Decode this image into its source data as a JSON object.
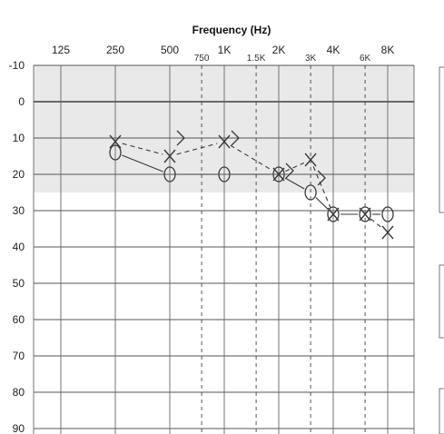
{
  "chart_data": {
    "type": "line",
    "title": "Frequency (Hz)",
    "x_scale": "log",
    "main_frequencies": [
      125,
      250,
      500,
      1000,
      2000,
      4000,
      8000
    ],
    "main_tick_labels": [
      "125",
      "250",
      "500",
      "1K",
      "2K",
      "4K",
      "8K"
    ],
    "inter_frequencies": [
      750,
      1500,
      3000,
      6000
    ],
    "inter_tick_labels": [
      "750",
      "1.5K",
      "3K",
      "6K"
    ],
    "y_ticks": [
      -10,
      0,
      10,
      20,
      30,
      40,
      50,
      60,
      70,
      80,
      90
    ],
    "y_tick_labels": [
      "-10",
      "0",
      "10",
      "20",
      "30",
      "40",
      "50",
      "60",
      "70",
      "80",
      "90"
    ],
    "ylim": [
      -10,
      90
    ],
    "y_inverted": true,
    "grid": true,
    "normal_zone": [
      -10,
      25
    ],
    "series": [
      {
        "symbol": "circle",
        "x": [
          250,
          500,
          1000,
          2000,
          3000,
          4000,
          6000,
          8000
        ],
        "y": [
          14,
          20,
          20,
          20,
          25,
          31,
          31,
          31
        ]
      },
      {
        "symbol": "cross",
        "x": [
          250,
          500,
          1000,
          2000,
          3000,
          4000,
          6000,
          8000
        ],
        "y": [
          11,
          15,
          11,
          20,
          16,
          31,
          31,
          36
        ]
      },
      {
        "symbol": "bracket",
        "x": [
          500,
          1000,
          2000,
          3000
        ],
        "y": [
          10,
          10,
          19,
          21
        ]
      }
    ]
  }
}
